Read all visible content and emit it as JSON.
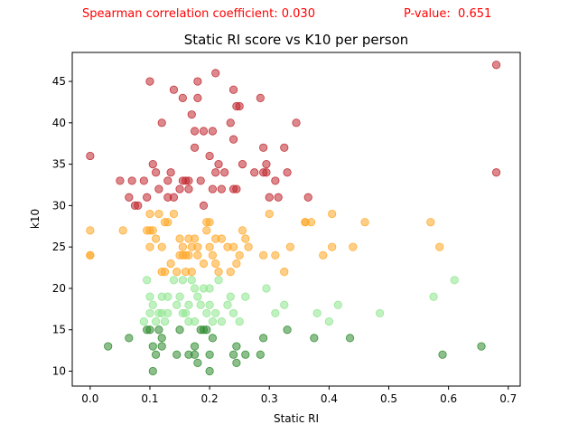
{
  "annotations": {
    "correlation": "Spearman correlation coefficient: 0.030",
    "pvalue": "P-value:  0.651",
    "color": "#ff0000"
  },
  "chart_data": {
    "type": "scatter",
    "title": "Static RI score vs K10 per person",
    "xlabel": "Static RI",
    "ylabel": "k10",
    "xlim": [
      -0.03,
      0.72
    ],
    "ylim": [
      8.2,
      48.5
    ],
    "xticks": [
      0.0,
      0.1,
      0.2,
      0.3,
      0.4,
      0.5,
      0.6,
      0.7
    ],
    "xtick_labels": [
      "0.0",
      "0.1",
      "0.2",
      "0.3",
      "0.4",
      "0.5",
      "0.6",
      "0.7"
    ],
    "yticks": [
      10,
      15,
      20,
      25,
      30,
      35,
      40,
      45
    ],
    "ytick_labels": [
      "10",
      "15",
      "20",
      "25",
      "30",
      "35",
      "40",
      "45"
    ],
    "grid": false,
    "legend": false,
    "marker_alpha": 0.55,
    "series": [
      {
        "color": "#c0272d",
        "points": [
          [
            0.0,
            36
          ],
          [
            0.05,
            33
          ],
          [
            0.07,
            33
          ],
          [
            0.065,
            31
          ],
          [
            0.075,
            30
          ],
          [
            0.08,
            30
          ],
          [
            0.09,
            33
          ],
          [
            0.095,
            31
          ],
          [
            0.1,
            45
          ],
          [
            0.105,
            35
          ],
          [
            0.11,
            34
          ],
          [
            0.115,
            32
          ],
          [
            0.12,
            40
          ],
          [
            0.13,
            31
          ],
          [
            0.13,
            33
          ],
          [
            0.135,
            34
          ],
          [
            0.14,
            44
          ],
          [
            0.14,
            31
          ],
          [
            0.15,
            32
          ],
          [
            0.155,
            43
          ],
          [
            0.155,
            33
          ],
          [
            0.16,
            33
          ],
          [
            0.165,
            32
          ],
          [
            0.165,
            33
          ],
          [
            0.17,
            41
          ],
          [
            0.175,
            39
          ],
          [
            0.175,
            37
          ],
          [
            0.18,
            43
          ],
          [
            0.18,
            45
          ],
          [
            0.185,
            33
          ],
          [
            0.19,
            30
          ],
          [
            0.19,
            39
          ],
          [
            0.2,
            36
          ],
          [
            0.205,
            39
          ],
          [
            0.205,
            32
          ],
          [
            0.21,
            34
          ],
          [
            0.21,
            46
          ],
          [
            0.215,
            35
          ],
          [
            0.22,
            32
          ],
          [
            0.225,
            34
          ],
          [
            0.235,
            40
          ],
          [
            0.24,
            38
          ],
          [
            0.24,
            32
          ],
          [
            0.24,
            44
          ],
          [
            0.245,
            42
          ],
          [
            0.245,
            32
          ],
          [
            0.25,
            42
          ],
          [
            0.255,
            35
          ],
          [
            0.275,
            34
          ],
          [
            0.285,
            43
          ],
          [
            0.29,
            34
          ],
          [
            0.29,
            37
          ],
          [
            0.295,
            35
          ],
          [
            0.295,
            34
          ],
          [
            0.3,
            31
          ],
          [
            0.31,
            33
          ],
          [
            0.315,
            31
          ],
          [
            0.325,
            37
          ],
          [
            0.33,
            34
          ],
          [
            0.345,
            40
          ],
          [
            0.365,
            31
          ],
          [
            0.68,
            47
          ],
          [
            0.68,
            34
          ]
        ]
      },
      {
        "color": "#ffa726",
        "points": [
          [
            0.0,
            27
          ],
          [
            0.0,
            24
          ],
          [
            0.0,
            24
          ],
          [
            0.055,
            27
          ],
          [
            0.095,
            27
          ],
          [
            0.1,
            29
          ],
          [
            0.1,
            25
          ],
          [
            0.1,
            27
          ],
          [
            0.105,
            27
          ],
          [
            0.11,
            26
          ],
          [
            0.115,
            29
          ],
          [
            0.12,
            25
          ],
          [
            0.12,
            22
          ],
          [
            0.125,
            22
          ],
          [
            0.125,
            28
          ],
          [
            0.13,
            28
          ],
          [
            0.135,
            23
          ],
          [
            0.14,
            29
          ],
          [
            0.145,
            22
          ],
          [
            0.15,
            24
          ],
          [
            0.15,
            26
          ],
          [
            0.155,
            25
          ],
          [
            0.155,
            24
          ],
          [
            0.16,
            24
          ],
          [
            0.16,
            22
          ],
          [
            0.165,
            24
          ],
          [
            0.165,
            26
          ],
          [
            0.17,
            25
          ],
          [
            0.17,
            22
          ],
          [
            0.175,
            26
          ],
          [
            0.18,
            25
          ],
          [
            0.18,
            24
          ],
          [
            0.19,
            23
          ],
          [
            0.195,
            28
          ],
          [
            0.195,
            27
          ],
          [
            0.2,
            25
          ],
          [
            0.2,
            28
          ],
          [
            0.205,
            24
          ],
          [
            0.21,
            26
          ],
          [
            0.21,
            23
          ],
          [
            0.215,
            22
          ],
          [
            0.22,
            26
          ],
          [
            0.23,
            25
          ],
          [
            0.235,
            22
          ],
          [
            0.24,
            25
          ],
          [
            0.245,
            23
          ],
          [
            0.25,
            24
          ],
          [
            0.255,
            27
          ],
          [
            0.26,
            26
          ],
          [
            0.265,
            25
          ],
          [
            0.29,
            24
          ],
          [
            0.3,
            29
          ],
          [
            0.31,
            24
          ],
          [
            0.325,
            22
          ],
          [
            0.335,
            25
          ],
          [
            0.36,
            28
          ],
          [
            0.36,
            28
          ],
          [
            0.37,
            28
          ],
          [
            0.39,
            24
          ],
          [
            0.405,
            29
          ],
          [
            0.405,
            25
          ],
          [
            0.44,
            25
          ],
          [
            0.46,
            28
          ],
          [
            0.57,
            28
          ],
          [
            0.585,
            25
          ]
        ]
      },
      {
        "color": "#8ee68e",
        "points": [
          [
            0.09,
            16
          ],
          [
            0.095,
            21
          ],
          [
            0.1,
            19
          ],
          [
            0.1,
            17
          ],
          [
            0.105,
            18
          ],
          [
            0.11,
            16
          ],
          [
            0.115,
            17
          ],
          [
            0.12,
            17
          ],
          [
            0.12,
            19
          ],
          [
            0.125,
            16
          ],
          [
            0.13,
            17
          ],
          [
            0.13,
            19
          ],
          [
            0.14,
            21
          ],
          [
            0.145,
            18
          ],
          [
            0.15,
            19
          ],
          [
            0.155,
            17
          ],
          [
            0.155,
            21
          ],
          [
            0.16,
            17
          ],
          [
            0.165,
            18
          ],
          [
            0.165,
            16
          ],
          [
            0.17,
            21
          ],
          [
            0.175,
            20
          ],
          [
            0.175,
            16
          ],
          [
            0.18,
            19
          ],
          [
            0.185,
            18
          ],
          [
            0.19,
            20
          ],
          [
            0.195,
            17
          ],
          [
            0.2,
            18
          ],
          [
            0.2,
            20
          ],
          [
            0.205,
            16
          ],
          [
            0.21,
            17
          ],
          [
            0.215,
            21
          ],
          [
            0.22,
            16
          ],
          [
            0.23,
            18
          ],
          [
            0.235,
            19
          ],
          [
            0.24,
            17
          ],
          [
            0.25,
            16
          ],
          [
            0.26,
            19
          ],
          [
            0.295,
            20
          ],
          [
            0.31,
            17
          ],
          [
            0.325,
            18
          ],
          [
            0.38,
            17
          ],
          [
            0.4,
            16
          ],
          [
            0.415,
            18
          ],
          [
            0.485,
            17
          ],
          [
            0.575,
            19
          ],
          [
            0.61,
            21
          ]
        ]
      },
      {
        "color": "#2e8b2e",
        "points": [
          [
            0.03,
            13
          ],
          [
            0.065,
            14
          ],
          [
            0.095,
            15
          ],
          [
            0.1,
            15
          ],
          [
            0.105,
            10
          ],
          [
            0.105,
            13
          ],
          [
            0.11,
            12
          ],
          [
            0.115,
            15
          ],
          [
            0.12,
            13
          ],
          [
            0.12,
            14
          ],
          [
            0.145,
            12
          ],
          [
            0.15,
            15
          ],
          [
            0.165,
            12
          ],
          [
            0.175,
            13
          ],
          [
            0.175,
            12
          ],
          [
            0.18,
            11
          ],
          [
            0.185,
            15
          ],
          [
            0.19,
            15
          ],
          [
            0.195,
            15
          ],
          [
            0.2,
            12
          ],
          [
            0.2,
            10
          ],
          [
            0.205,
            14
          ],
          [
            0.24,
            12
          ],
          [
            0.245,
            13
          ],
          [
            0.245,
            11
          ],
          [
            0.26,
            12
          ],
          [
            0.285,
            12
          ],
          [
            0.29,
            14
          ],
          [
            0.33,
            15
          ],
          [
            0.375,
            14
          ],
          [
            0.435,
            14
          ],
          [
            0.59,
            12
          ],
          [
            0.655,
            13
          ]
        ]
      }
    ]
  }
}
